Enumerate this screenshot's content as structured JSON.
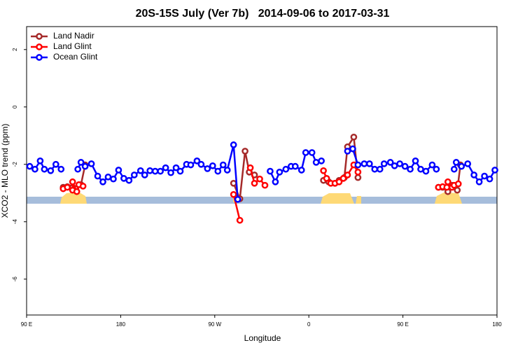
{
  "chart_data": {
    "type": "line",
    "title": "20S-15S July (Ver 7b)   2014-09-06 to 2017-03-31",
    "x_label": "Longitude",
    "y_label": "XCO2 - MLO trend (ppm)",
    "xlim": [
      90,
      540
    ],
    "ylim": [
      -7.25,
      2.8
    ],
    "xticks": [
      {
        "value": 90,
        "label": "90 E"
      },
      {
        "value": 180,
        "label": "180"
      },
      {
        "value": 270,
        "label": "90 W"
      },
      {
        "value": 360,
        "label": "0"
      },
      {
        "value": 450,
        "label": "90 E"
      },
      {
        "value": 540,
        "label": "180"
      }
    ],
    "yticks": [
      2,
      0,
      -2,
      -4,
      -6
    ],
    "legend": "upper left",
    "series": [
      {
        "name": "Land Nadir",
        "color": "#a52a2a",
        "x": [
          125,
          129,
          134,
          137,
          142,
          146,
          200,
          288,
          294,
          299,
          303,
          308,
          340,
          374,
          379,
          385,
          389,
          394,
          397,
          403,
          407,
          450,
          484,
          488,
          493,
          497,
          502,
          505
        ],
        "values": [
          -2.8,
          -2.78,
          -2.8,
          -2.85,
          -2.71,
          -2.02,
          null,
          -2.66,
          -3.2,
          -1.54,
          -2.27,
          -2.37,
          null,
          -2.56,
          -2.61,
          -2.66,
          -2.56,
          -2.46,
          -1.39,
          -1.05,
          -2.46,
          null,
          -2.8,
          -2.8,
          -2.95,
          -2.73,
          -2.9,
          -2.02
        ]
      },
      {
        "name": "Land Glint",
        "color": "#ff0000",
        "x": [
          125,
          129,
          134,
          134,
          138,
          140,
          144,
          200,
          288,
          294,
          299,
          304,
          308,
          313,
          318,
          340,
          374,
          377,
          381,
          385,
          389,
          393,
          397,
          403,
          407,
          450,
          484,
          488,
          492,
          493,
          497,
          499,
          503
        ],
        "values": [
          -2.85,
          -2.8,
          -2.9,
          -2.61,
          -2.95,
          -2.71,
          -2.76,
          null,
          -3.05,
          -3.95,
          null,
          -2.12,
          -2.66,
          -2.51,
          -2.73,
          null,
          -2.22,
          -2.49,
          -2.66,
          -2.66,
          -2.61,
          -2.49,
          -2.37,
          -2.02,
          -2.27,
          null,
          -2.8,
          -2.78,
          -2.8,
          -2.61,
          -2.8,
          -2.73,
          -2.68
        ]
      },
      {
        "name": "Ocean Glint",
        "color": "#0000ff",
        "x": [
          93,
          98,
          103,
          107,
          113,
          118,
          123,
          130,
          139,
          142,
          146,
          152,
          158,
          163,
          168,
          173,
          178,
          183,
          188,
          193,
          199,
          203,
          208,
          213,
          218,
          223,
          228,
          233,
          237,
          243,
          247,
          253,
          257,
          263,
          268,
          273,
          278,
          282,
          288,
          292,
          310,
          323,
          328,
          332,
          338,
          343,
          347,
          353,
          357,
          363,
          367,
          372,
          385,
          397,
          402,
          407,
          413,
          418,
          423,
          428,
          432,
          438,
          442,
          447,
          452,
          457,
          462,
          467,
          472,
          478,
          482,
          490,
          499,
          501,
          506,
          512,
          518,
          523,
          528,
          533,
          538
        ],
        "values": [
          -2.07,
          -2.17,
          -1.88,
          -2.17,
          -2.22,
          -2.0,
          -2.17,
          null,
          -2.17,
          -1.93,
          -2.07,
          -1.98,
          -2.41,
          -2.61,
          -2.44,
          -2.51,
          -2.2,
          -2.49,
          -2.56,
          -2.37,
          -2.22,
          -2.37,
          -2.22,
          -2.24,
          -2.24,
          -2.12,
          -2.29,
          -2.12,
          -2.24,
          -2.0,
          -2.02,
          -1.88,
          -2.0,
          -2.15,
          -2.05,
          -2.24,
          -2.02,
          -2.2,
          -1.32,
          -3.22,
          null,
          -2.24,
          -2.61,
          -2.27,
          -2.17,
          -2.07,
          -2.07,
          -2.2,
          -1.59,
          -1.59,
          -1.93,
          -1.88,
          null,
          -1.54,
          -1.46,
          -2.02,
          -1.98,
          -1.98,
          -2.17,
          -2.17,
          -1.98,
          -1.93,
          -2.05,
          -1.98,
          -2.07,
          -2.17,
          -1.88,
          -2.17,
          -2.24,
          -2.02,
          -2.17,
          null,
          -2.17,
          -1.93,
          -2.07,
          -1.98,
          -2.37,
          -2.61,
          -2.41,
          -2.51,
          -2.2
        ]
      }
    ]
  }
}
